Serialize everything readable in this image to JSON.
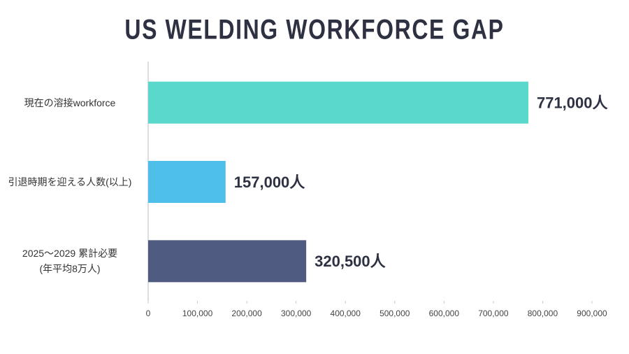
{
  "chart_data": {
    "type": "hbar",
    "title": "US WELDING WORKFORCE GAP",
    "categories": [
      "現在の溶接workforce",
      "引退時期を迎える人数(以上)",
      "2025～2029 累計必要\n(年平均8万人)"
    ],
    "values": [
      771000,
      157000,
      320500
    ],
    "value_labels": [
      "771,000人",
      "157,000人",
      "320,500人"
    ],
    "colors": [
      "#5ad8cc",
      "#4dbfe9",
      "#4f5b80"
    ],
    "xlim": [
      0,
      900000
    ],
    "xticks": [
      0,
      {
        "value": 100000,
        "label": "100,000"
      },
      {
        "value": 200000,
        "label": "200,000"
      },
      {
        "value": 300000,
        "label": "300,000"
      },
      {
        "value": 400000,
        "label": "400,000"
      },
      {
        "value": 500000,
        "label": "500,000"
      },
      {
        "value": 600000,
        "label": "600,000"
      },
      {
        "value": 700000,
        "label": "700,000"
      },
      {
        "value": 800000,
        "label": "800,000"
      },
      {
        "value": 900000,
        "label": "900,000"
      }
    ]
  }
}
